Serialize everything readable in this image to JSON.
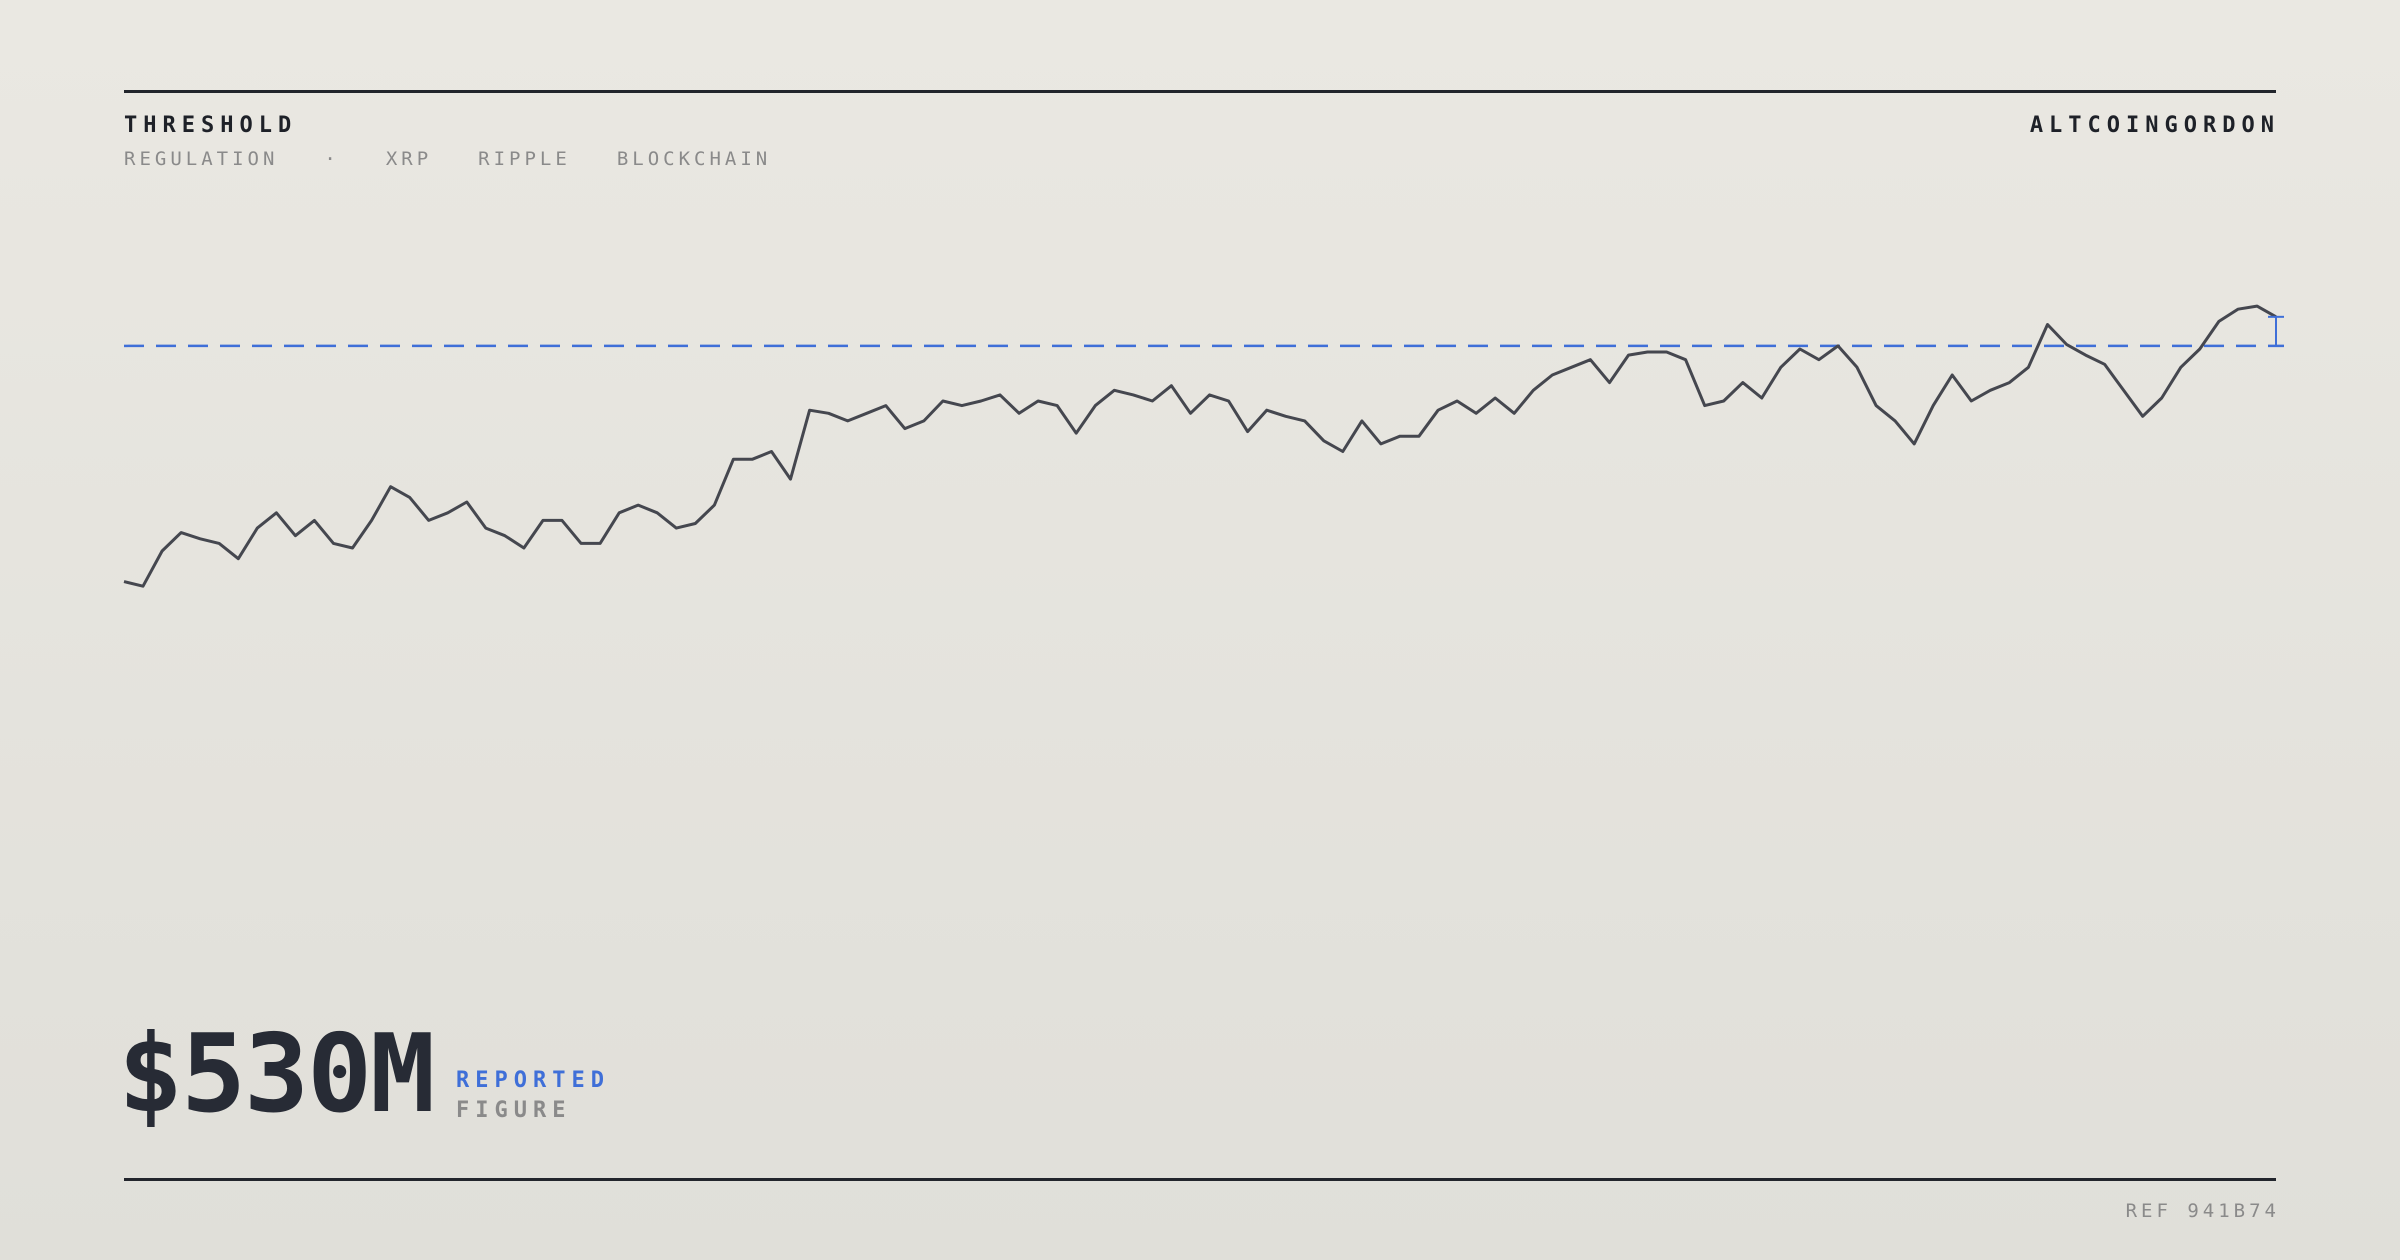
{
  "header": {
    "title": "THRESHOLD",
    "brand": "ALTCOINGORDON",
    "tags": [
      "REGULATION",
      "·",
      "XRP",
      "RIPPLE",
      "BLOCKCHAIN"
    ]
  },
  "sparkline": {
    "values": [
      20,
      17,
      40,
      52,
      48,
      45,
      35,
      55,
      65,
      50,
      60,
      45,
      42,
      60,
      82,
      75,
      60,
      65,
      72,
      55,
      50,
      42,
      60,
      60,
      45,
      45,
      65,
      70,
      65,
      55,
      58,
      70,
      100,
      100,
      105,
      87,
      132,
      130,
      125,
      130,
      135,
      120,
      125,
      138,
      135,
      138,
      142,
      130,
      138,
      135,
      117,
      135,
      145,
      142,
      138,
      148,
      130,
      142,
      138,
      118,
      132,
      128,
      125,
      112,
      105,
      125,
      110,
      115,
      115,
      132,
      138,
      130,
      140,
      130,
      145,
      155,
      160,
      165,
      150,
      168,
      170,
      170,
      165,
      135,
      138,
      150,
      140,
      160,
      172,
      165,
      174,
      160,
      135,
      125,
      110,
      135,
      155,
      138,
      145,
      150,
      160,
      188,
      175,
      168,
      162,
      145,
      128,
      140,
      160,
      172,
      190,
      198,
      200,
      193
    ],
    "threshold": 174,
    "color": "#45474f",
    "threshold_color": "#3f6fd8"
  },
  "figure": {
    "value": "$530M",
    "label_top": "REPORTED",
    "label_bottom": "FIGURE"
  },
  "footer": {
    "ref": "REF 941B74"
  }
}
